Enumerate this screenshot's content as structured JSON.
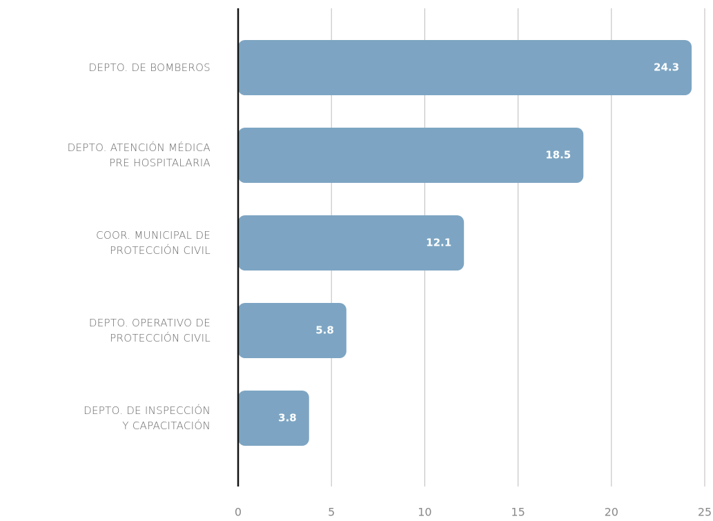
{
  "chart_data": {
    "type": "hbar",
    "categories": [
      "DEPTO. DE BOMBEROS",
      "DEPTO. ATENCIÓN MÉDICA\nPRE HOSPITALARIA",
      "COOR. MUNICIPAL DE\nPROTECCIÓN CIVIL",
      "DEPTO. OPERATIVO DE\nPROTECCIÓN CIVIL",
      "DEPTO. DE INSPECCIÓN\nY CAPACITACIÓN"
    ],
    "values": [
      24.3,
      18.5,
      12.1,
      5.8,
      3.8
    ],
    "color": "#7da5c3",
    "xlim": [
      0,
      25
    ],
    "xticks": [
      0,
      5,
      10,
      15,
      20,
      25
    ],
    "grid": true
  }
}
